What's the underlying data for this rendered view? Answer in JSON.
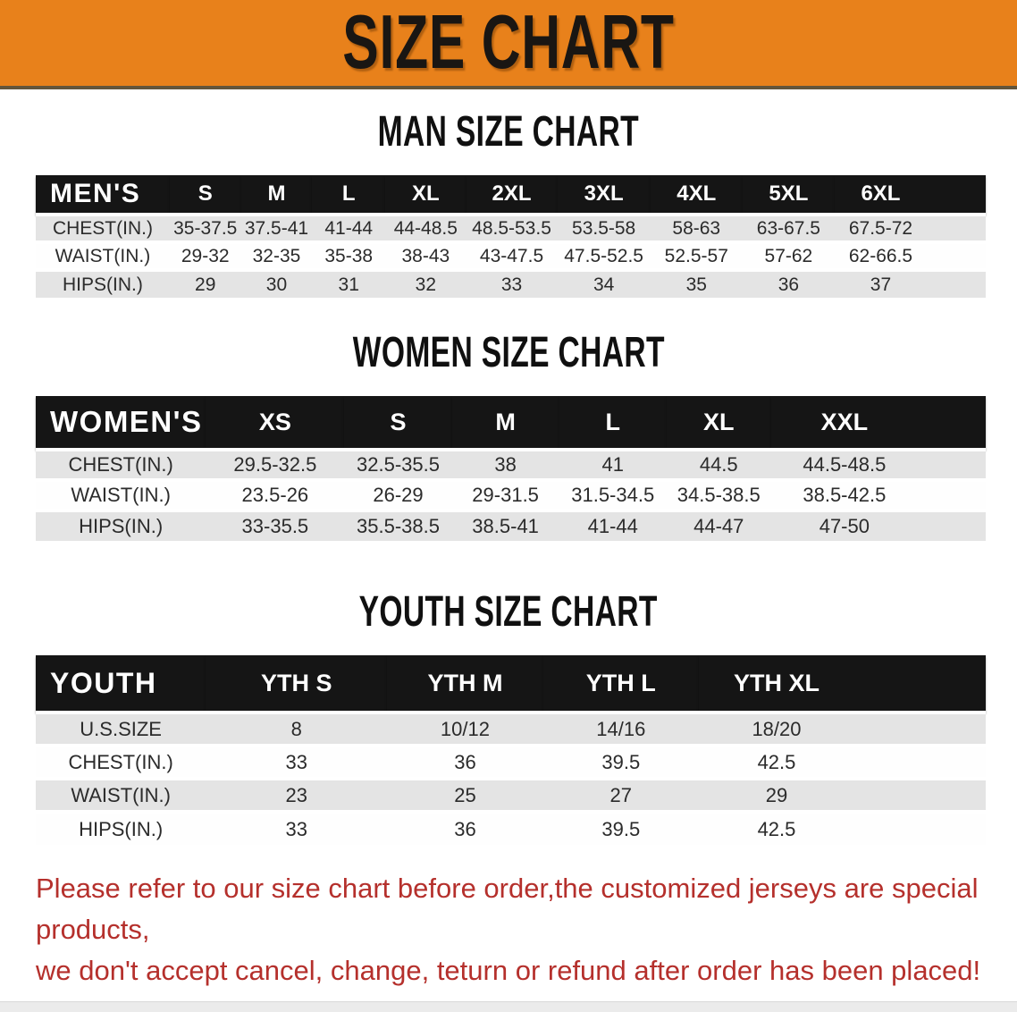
{
  "banner": {
    "title": "SIZE CHART"
  },
  "colors": {
    "banner_orange": "#E8811B",
    "banner_underline": "#63553B",
    "header_black": "#151515",
    "row_gray": "#E4E4E4",
    "row_white": "#FEFEFE",
    "disclaimer_red": "#B5302C"
  },
  "chart_data": [
    {
      "type": "table",
      "title": "MAN SIZE CHART",
      "header_label": "MEN'S",
      "columns": [
        "S",
        "M",
        "L",
        "XL",
        "2XL",
        "3XL",
        "4XL",
        "5XL",
        "6XL"
      ],
      "rows": [
        {
          "label": "CHEST(IN.)",
          "values": [
            "35-37.5",
            "37.5-41",
            "41-44",
            "44-48.5",
            "48.5-53.5",
            "53.5-58",
            "58-63",
            "63-67.5",
            "67.5-72"
          ]
        },
        {
          "label": "WAIST(IN.)",
          "values": [
            "29-32",
            "32-35",
            "35-38",
            "38-43",
            "43-47.5",
            "47.5-52.5",
            "52.5-57",
            "57-62",
            "62-66.5"
          ]
        },
        {
          "label": "HIPS(IN.)",
          "values": [
            "29",
            "30",
            "31",
            "32",
            "33",
            "34",
            "35",
            "36",
            "37"
          ]
        }
      ]
    },
    {
      "type": "table",
      "title": "WOMEN SIZE CHART",
      "header_label": "WOMEN'S",
      "columns": [
        "XS",
        "S",
        "M",
        "L",
        "XL",
        "XXL"
      ],
      "rows": [
        {
          "label": "CHEST(IN.)",
          "values": [
            "29.5-32.5",
            "32.5-35.5",
            "38",
            "41",
            "44.5",
            "44.5-48.5"
          ]
        },
        {
          "label": "WAIST(IN.)",
          "values": [
            "23.5-26",
            "26-29",
            "29-31.5",
            "31.5-34.5",
            "34.5-38.5",
            "38.5-42.5"
          ]
        },
        {
          "label": "HIPS(IN.)",
          "values": [
            "33-35.5",
            "35.5-38.5",
            "38.5-41",
            "41-44",
            "44-47",
            "47-50"
          ]
        }
      ]
    },
    {
      "type": "table",
      "title": "YOUTH SIZE CHART",
      "header_label": "YOUTH",
      "columns": [
        "YTH S",
        "YTH M",
        "YTH L",
        "YTH XL"
      ],
      "rows": [
        {
          "label": "U.S.SIZE",
          "values": [
            "8",
            "10/12",
            "14/16",
            "18/20"
          ]
        },
        {
          "label": "CHEST(IN.)",
          "values": [
            "33",
            "36",
            "39.5",
            "42.5"
          ]
        },
        {
          "label": "WAIST(IN.)",
          "values": [
            "23",
            "25",
            "27",
            "29"
          ]
        },
        {
          "label": "HIPS(IN.)",
          "values": [
            "33",
            "36",
            "39.5",
            "42.5"
          ]
        }
      ]
    }
  ],
  "disclaimer": {
    "line1": "Please refer to our size chart before order,the customized jerseys are special products,",
    "line2": "we don't accept cancel, change, teturn or refund after order has been placed!"
  }
}
